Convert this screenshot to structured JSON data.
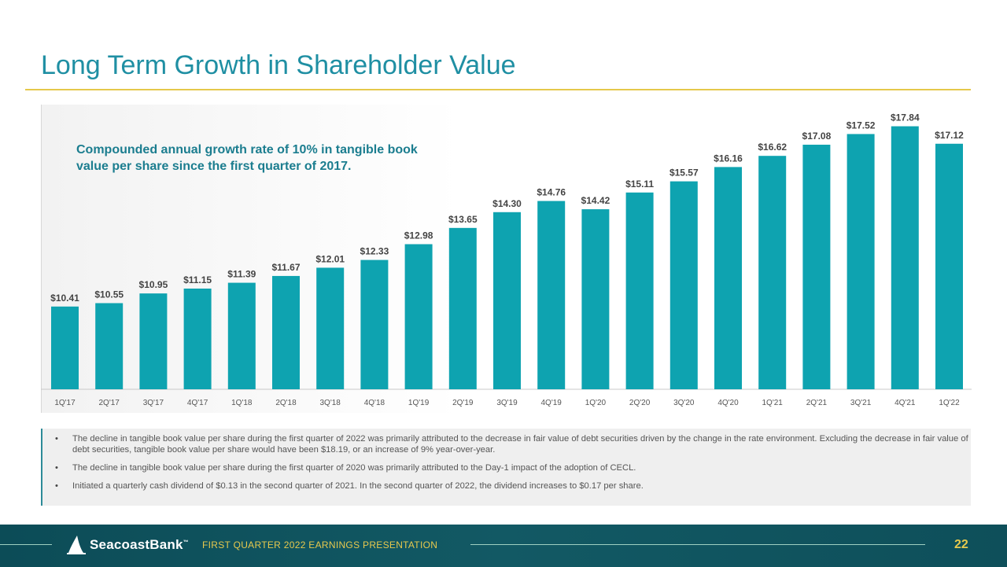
{
  "title": "Long Term Growth in Shareholder Value",
  "annotation": "Compounded annual growth rate of 10% in tangible book value per share since the first quarter of 2017.",
  "chart_data": {
    "type": "bar",
    "categories": [
      "1Q'17",
      "2Q'17",
      "3Q'17",
      "4Q'17",
      "1Q'18",
      "2Q'18",
      "3Q'18",
      "4Q'18",
      "1Q'19",
      "2Q'19",
      "3Q'19",
      "4Q'19",
      "1Q'20",
      "2Q'20",
      "3Q'20",
      "4Q'20",
      "1Q'21",
      "2Q'21",
      "3Q'21",
      "4Q'21",
      "1Q'22"
    ],
    "values": [
      10.41,
      10.55,
      10.95,
      11.15,
      11.39,
      11.67,
      12.01,
      12.33,
      12.98,
      13.65,
      14.3,
      14.76,
      14.42,
      15.11,
      15.57,
      16.16,
      16.62,
      17.08,
      17.52,
      17.84,
      17.12
    ],
    "labels": [
      "$10.41",
      "$10.55",
      "$10.95",
      "$11.15",
      "$11.39",
      "$11.67",
      "$12.01",
      "$12.33",
      "$12.98",
      "$13.65",
      "$14.30",
      "$14.76",
      "$14.42",
      "$15.11",
      "$15.57",
      "$16.16",
      "$16.62",
      "$17.08",
      "$17.52",
      "$17.84",
      "$17.12"
    ],
    "bar_color": "#0ea3b0",
    "label_color": "#444444",
    "ylim": [
      7,
      18.15
    ],
    "grid": false
  },
  "notes": [
    "The decline in tangible book value per share during the first quarter of 2022 was primarily attributed to the decrease in fair value of debt securities driven by the change in the rate environment. Excluding the decrease in fair value of debt securities, tangible book value per share would have been $18.19, or an increase of 9% year-over-year.",
    "The decline in tangible book value per share during the first quarter of 2020 was primarily attributed to the Day-1 impact of the adoption of CECL.",
    "Initiated a quarterly cash dividend of $0.13 in the second quarter of 2021. In the second quarter of 2022, the dividend increases to $0.17 per share."
  ],
  "footer": {
    "logo_text": "SeacoastBank",
    "logo_mark": "™",
    "presentation": "FIRST QUARTER 2022 EARNINGS PRESENTATION",
    "page": "22"
  },
  "colors": {
    "title": "#1f8fa3",
    "accent": "#e5c84a",
    "footer_bg": "#0f535e"
  }
}
